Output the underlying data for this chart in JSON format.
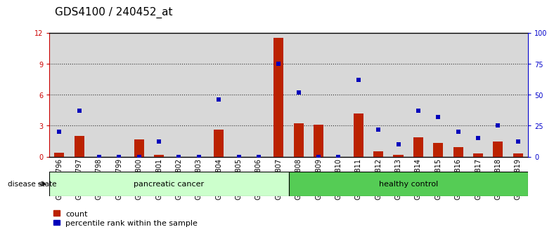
{
  "title": "GDS4100 / 240452_at",
  "samples": [
    "GSM356796",
    "GSM356797",
    "GSM356798",
    "GSM356799",
    "GSM356800",
    "GSM356801",
    "GSM356802",
    "GSM356803",
    "GSM356804",
    "GSM356805",
    "GSM356806",
    "GSM356807",
    "GSM356808",
    "GSM356809",
    "GSM356810",
    "GSM356811",
    "GSM356812",
    "GSM356813",
    "GSM356814",
    "GSM356815",
    "GSM356816",
    "GSM356817",
    "GSM356818",
    "GSM356819"
  ],
  "count": [
    0.35,
    2.0,
    0.0,
    0.0,
    1.7,
    0.15,
    0.0,
    0.0,
    2.6,
    0.0,
    0.0,
    11.5,
    3.2,
    3.1,
    0.0,
    4.2,
    0.5,
    0.2,
    1.9,
    1.3,
    0.9,
    0.3,
    1.5,
    0.3
  ],
  "percentile": [
    20,
    37,
    0,
    0,
    0,
    12,
    0,
    0,
    46,
    0,
    0,
    75,
    52,
    0,
    0,
    62,
    22,
    10,
    37,
    32,
    20,
    15,
    25,
    12
  ],
  "groups": [
    {
      "label": "pancreatic cancer",
      "start": 0,
      "end": 11,
      "color": "#ccffcc"
    },
    {
      "label": "healthy control",
      "start": 12,
      "end": 23,
      "color": "#55cc55"
    }
  ],
  "disease_state_label": "disease state",
  "ylim_left": [
    0,
    12
  ],
  "yticks_left": [
    0,
    3,
    6,
    9,
    12
  ],
  "ylim_right": [
    0,
    100
  ],
  "yticks_right": [
    0,
    25,
    50,
    75,
    100
  ],
  "bar_color": "#bb2200",
  "dot_color": "#0000bb",
  "bg_color": "#d8d8d8",
  "legend_count_label": "count",
  "legend_pct_label": "percentile rank within the sample",
  "left_axis_color": "#cc0000",
  "right_axis_color": "#0000cc",
  "grid_color": "#333333",
  "title_fontsize": 11,
  "tick_fontsize": 7,
  "bar_width": 0.5
}
